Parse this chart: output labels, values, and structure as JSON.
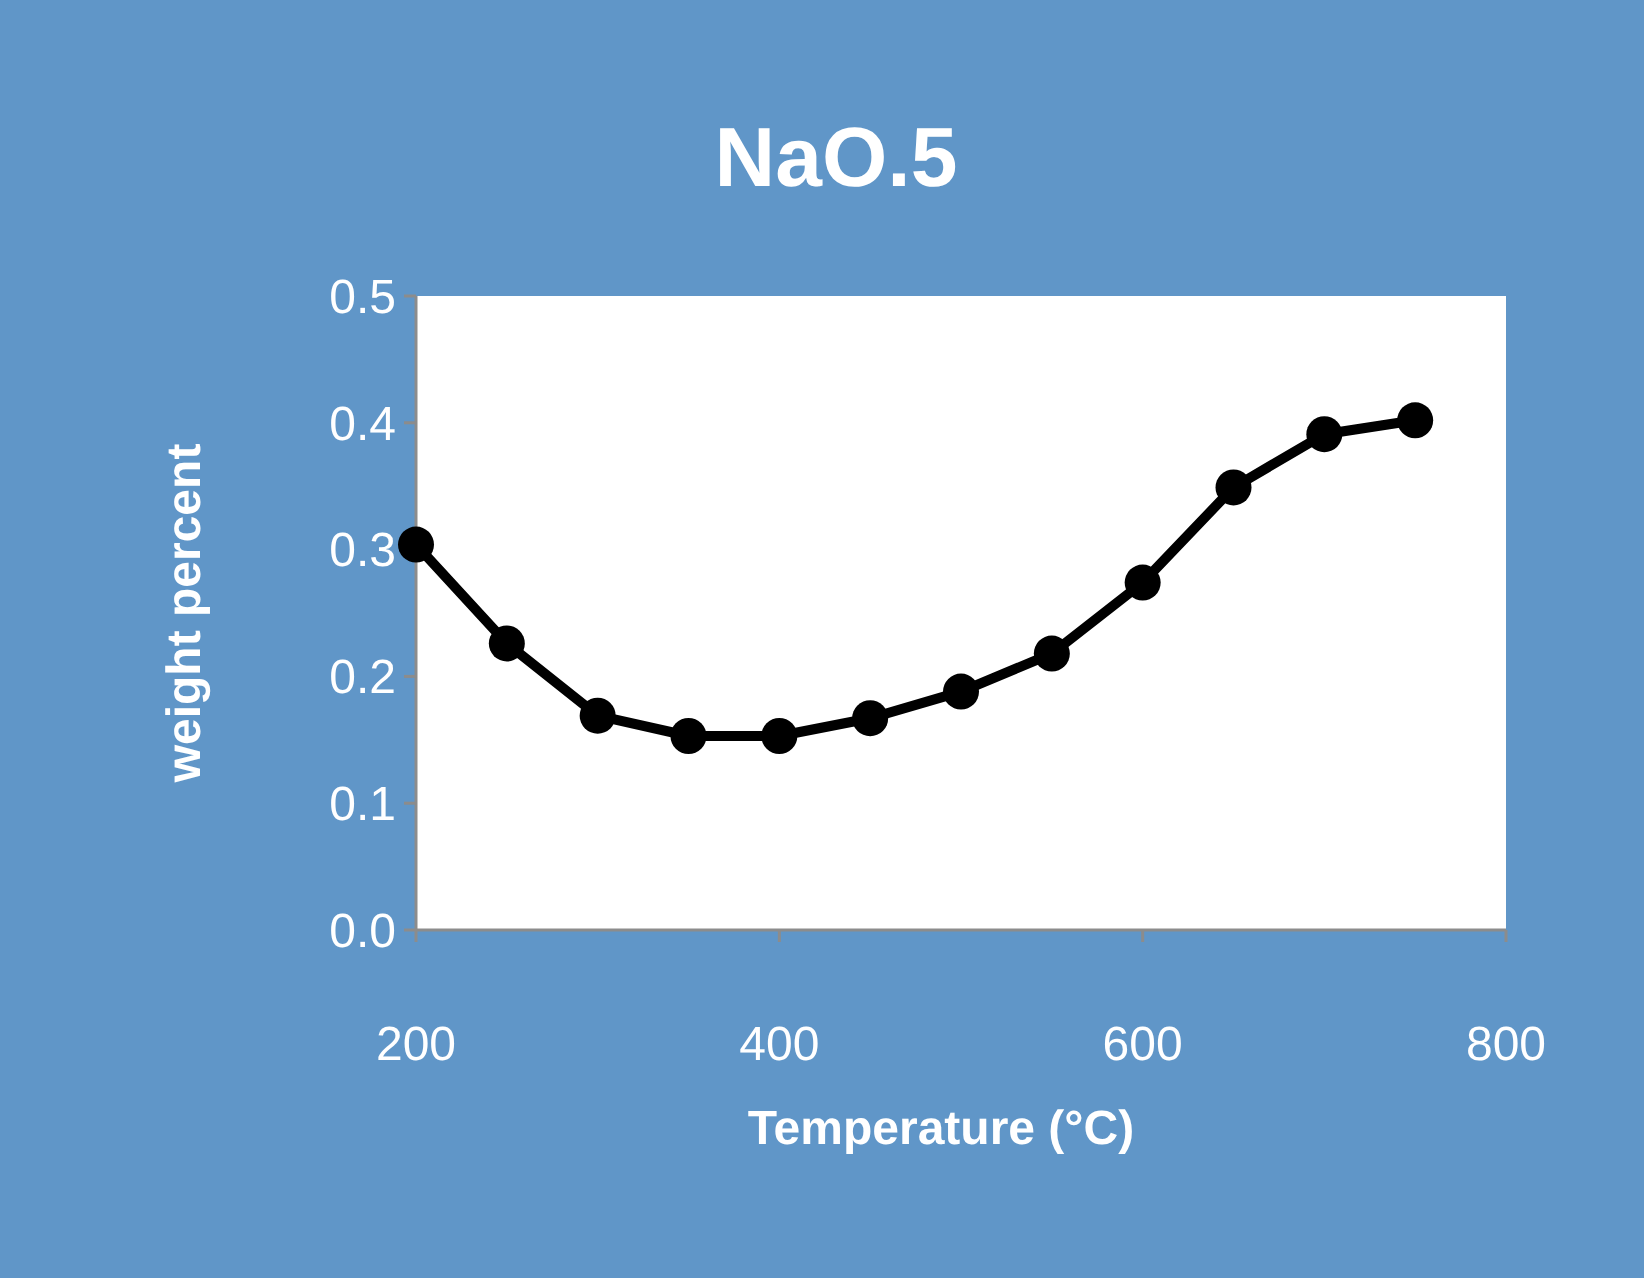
{
  "chart_data": {
    "type": "line",
    "title": "NaO.5",
    "xlabel": "Temperature (°C)",
    "ylabel": "weight percent",
    "x": [
      200,
      250,
      300,
      350,
      400,
      450,
      500,
      550,
      600,
      650,
      700,
      750
    ],
    "series": [
      {
        "color": "#000000",
        "values": [
          0.304,
          0.226,
          0.169,
          0.153,
          0.153,
          0.167,
          0.188,
          0.218,
          0.274,
          0.349,
          0.391,
          0.402
        ]
      }
    ],
    "xlim": [
      200,
      800
    ],
    "xticks": [
      200,
      400,
      600,
      800
    ],
    "ylim": [
      0,
      0.5
    ],
    "yticks": [
      {
        "value": 0,
        "label": "0.0"
      },
      {
        "value": 0.1,
        "label": "0.1"
      },
      {
        "value": 0.2,
        "label": "0.2"
      },
      {
        "value": 0.3,
        "label": "0.3"
      },
      {
        "value": 0.4,
        "label": "0.4"
      },
      {
        "value": 0.5,
        "label": "0.5"
      }
    ],
    "grid": false,
    "marker": "circle",
    "line_style": "solid"
  }
}
